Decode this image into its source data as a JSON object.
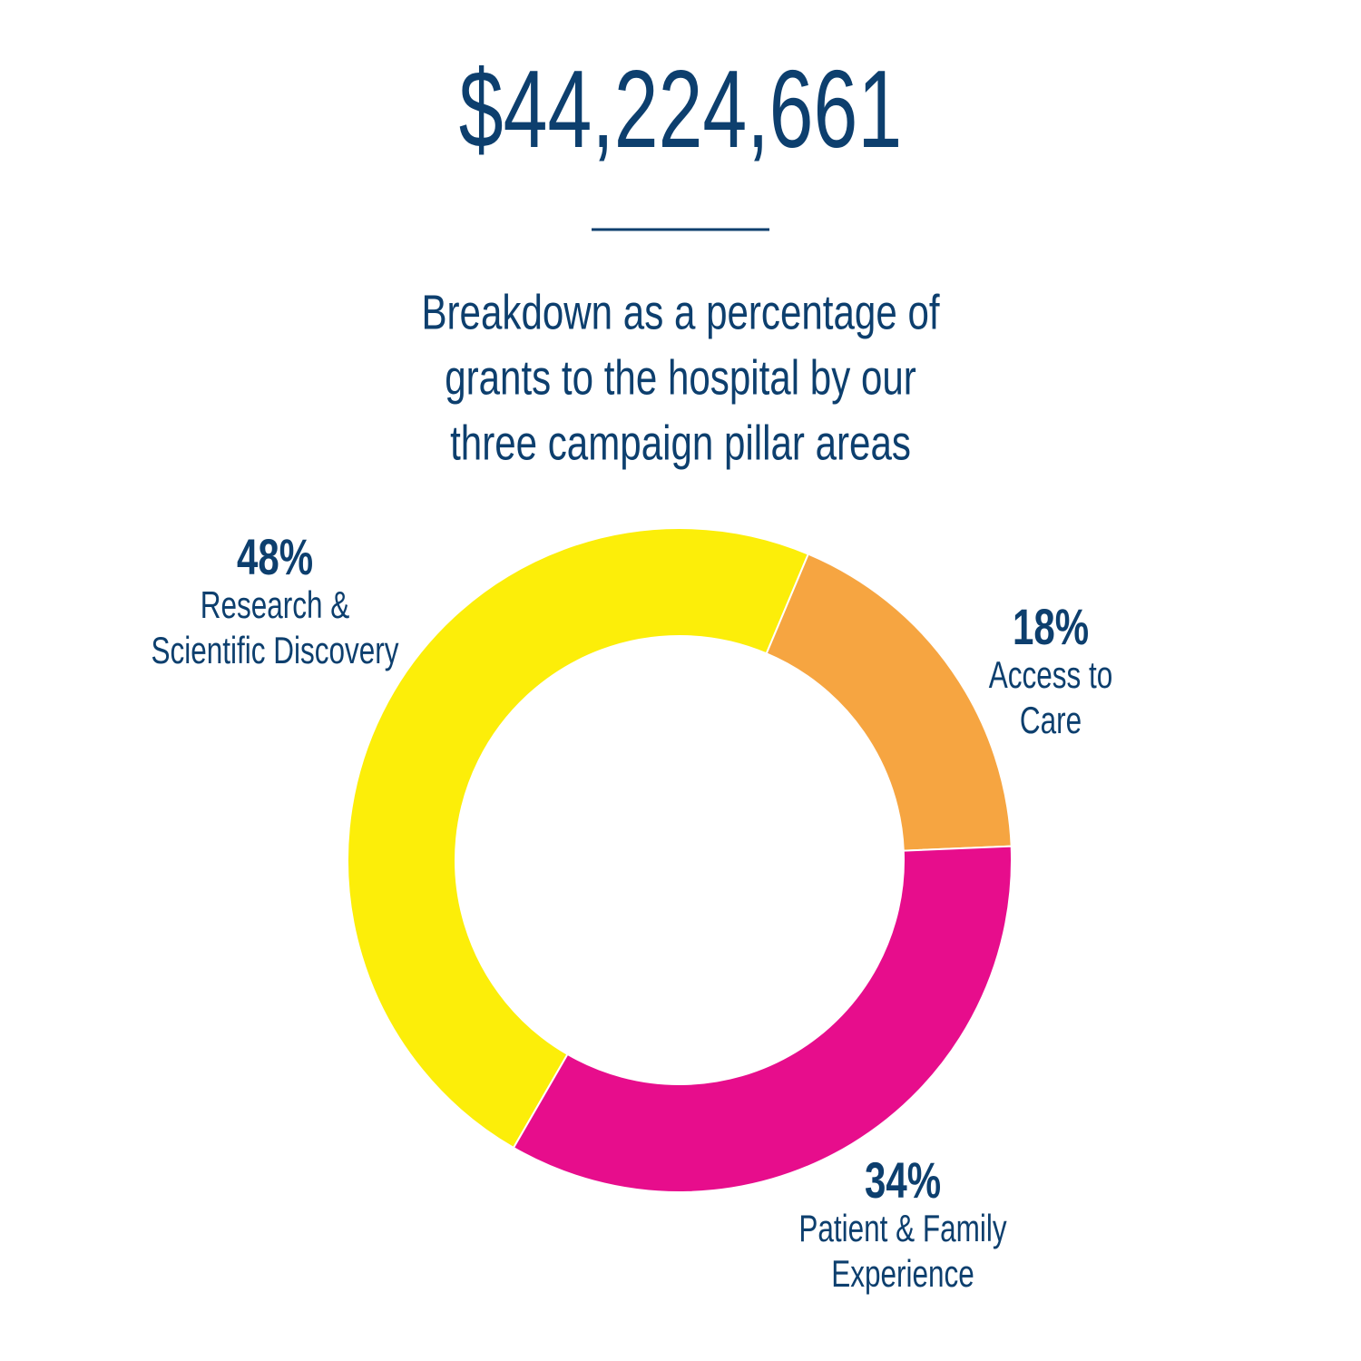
{
  "chart_data": {
    "type": "donut",
    "title": "$44,224,661",
    "subtitle": [
      "Breakdown as a percentage of",
      "grants to the hospital by our",
      "three campaign pillar areas"
    ],
    "categories": [
      [
        "Research &",
        "Scientific Discovery"
      ],
      [
        "Access to",
        "Care"
      ],
      [
        "Patient & Family",
        "Experience"
      ]
    ],
    "values": [
      48,
      18,
      34
    ],
    "value_labels": [
      "48%",
      "18%",
      "34%"
    ],
    "colors": [
      "#fcee09",
      "#f6a541",
      "#e70d8c"
    ]
  }
}
